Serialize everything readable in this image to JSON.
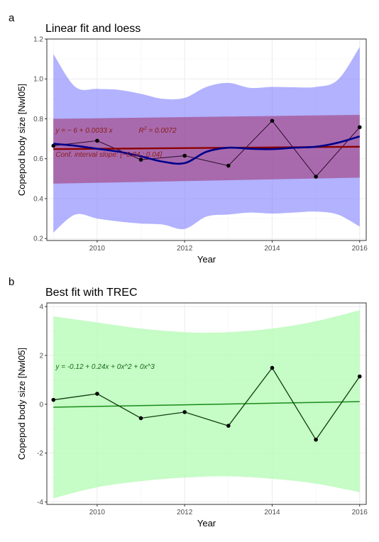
{
  "panels": {
    "a": {
      "letter": "a",
      "title": "Linear fit and loess"
    },
    "b": {
      "letter": "b",
      "title": "Best fit with TREC"
    }
  },
  "colors": {
    "panel_bg": "#ffffff",
    "grid": "#ebebeb",
    "border": "#333333",
    "observed_line": "#2b0a2b",
    "loess_band": "#7f7fff",
    "linear_band": "#a0306a",
    "linear_line": "#8b0000",
    "loess_line": "#00008b",
    "trec_band": "#b8fbb8",
    "trec_line": "#1a8c1a",
    "trec_observed": "#0f3d0f",
    "annotation_red": "#8b1a1a",
    "annotation_green": "#1a6b1a"
  },
  "chart_data": [
    {
      "type": "line",
      "panel": "a",
      "title": "Linear fit and loess",
      "xlabel": "Year",
      "ylabel": "Copepod body size [Nwl05]",
      "xlim": [
        2008.85,
        2016.15
      ],
      "ylim": [
        0.19,
        1.2
      ],
      "xticks": [
        2010,
        2012,
        2014,
        2016
      ],
      "yticks": [
        0.2,
        0.4,
        0.6,
        0.8,
        1.0,
        1.2
      ],
      "ytick_labels": [
        "0.2",
        "0.4",
        "0.6",
        "0.8",
        "1.0",
        "1.2"
      ],
      "grid": true,
      "observed": {
        "x": [
          2009,
          2010,
          2011,
          2012,
          2013,
          2014,
          2015,
          2016
        ],
        "y": [
          0.665,
          0.69,
          0.595,
          0.615,
          0.565,
          0.79,
          0.51,
          0.758
        ]
      },
      "linear_fit": {
        "intercept": -6,
        "slope": 0.0033,
        "r2": 0.0072,
        "x": [
          2009,
          2016
        ],
        "y": [
          0.648,
          0.66
        ],
        "ci_lower": [
          0.475,
          0.505
        ],
        "ci_upper": [
          0.8,
          0.82
        ]
      },
      "loess": {
        "x": [
          2009,
          2009.5,
          2010,
          2010.5,
          2011,
          2011.5,
          2012,
          2012.5,
          2013,
          2013.5,
          2014,
          2014.5,
          2015,
          2015.5,
          2016
        ],
        "y": [
          0.675,
          0.665,
          0.65,
          0.635,
          0.612,
          0.585,
          0.578,
          0.635,
          0.655,
          0.65,
          0.648,
          0.655,
          0.66,
          0.68,
          0.712
        ],
        "ci_lower": [
          0.23,
          0.32,
          0.3,
          0.285,
          0.275,
          0.27,
          0.248,
          0.31,
          0.32,
          0.33,
          0.325,
          0.33,
          0.335,
          0.32,
          0.26
        ],
        "ci_upper": [
          1.125,
          0.96,
          0.95,
          0.945,
          0.925,
          0.9,
          0.905,
          0.96,
          0.98,
          0.955,
          0.96,
          0.958,
          0.96,
          0.995,
          1.16
        ]
      },
      "annotations": [
        {
          "text": "y = − 6 + 0.0033 x",
          "x": 2009.05,
          "y": 0.73
        },
        {
          "text": "R² = 0.0072",
          "x": 2010.95,
          "y": 0.73
        },
        {
          "text": "Conf. interval slope: [−0.04 ; 0.04]",
          "x": 2009.05,
          "y": 0.61
        }
      ]
    },
    {
      "type": "line",
      "panel": "b",
      "title": "Best fit with TREC",
      "xlabel": "Year",
      "ylabel": "Copepod body size [Nwl05]",
      "xlim": [
        2008.85,
        2016.15
      ],
      "ylim": [
        -4.1,
        4.15
      ],
      "xticks": [
        2010,
        2012,
        2014,
        2016
      ],
      "yticks": [
        -4,
        -2,
        0,
        2,
        4
      ],
      "ytick_labels": [
        "-4",
        "-2",
        "0",
        "2",
        "4"
      ],
      "grid": true,
      "observed": {
        "x": [
          2009,
          2010,
          2011,
          2012,
          2013,
          2014,
          2015,
          2016
        ],
        "y": [
          0.18,
          0.43,
          -0.57,
          -0.32,
          -0.88,
          1.49,
          -1.45,
          1.14
        ]
      },
      "trec_fit": {
        "x": [
          2009,
          2016
        ],
        "y": [
          -0.12,
          0.11
        ],
        "band_x": [
          2009,
          2010,
          2011,
          2012,
          2013,
          2014,
          2015,
          2016
        ],
        "band_upper": [
          3.6,
          3.35,
          3.1,
          2.95,
          2.95,
          3.1,
          3.4,
          3.85
        ],
        "band_lower": [
          -3.85,
          -3.4,
          -3.15,
          -3.0,
          -2.95,
          -3.05,
          -3.25,
          -3.6
        ]
      },
      "annotations": [
        {
          "text": "y =  -0.12  + 0.24x  + 0x^2  + 0x^3",
          "x": 2009.05,
          "y": 1.45
        }
      ]
    }
  ]
}
